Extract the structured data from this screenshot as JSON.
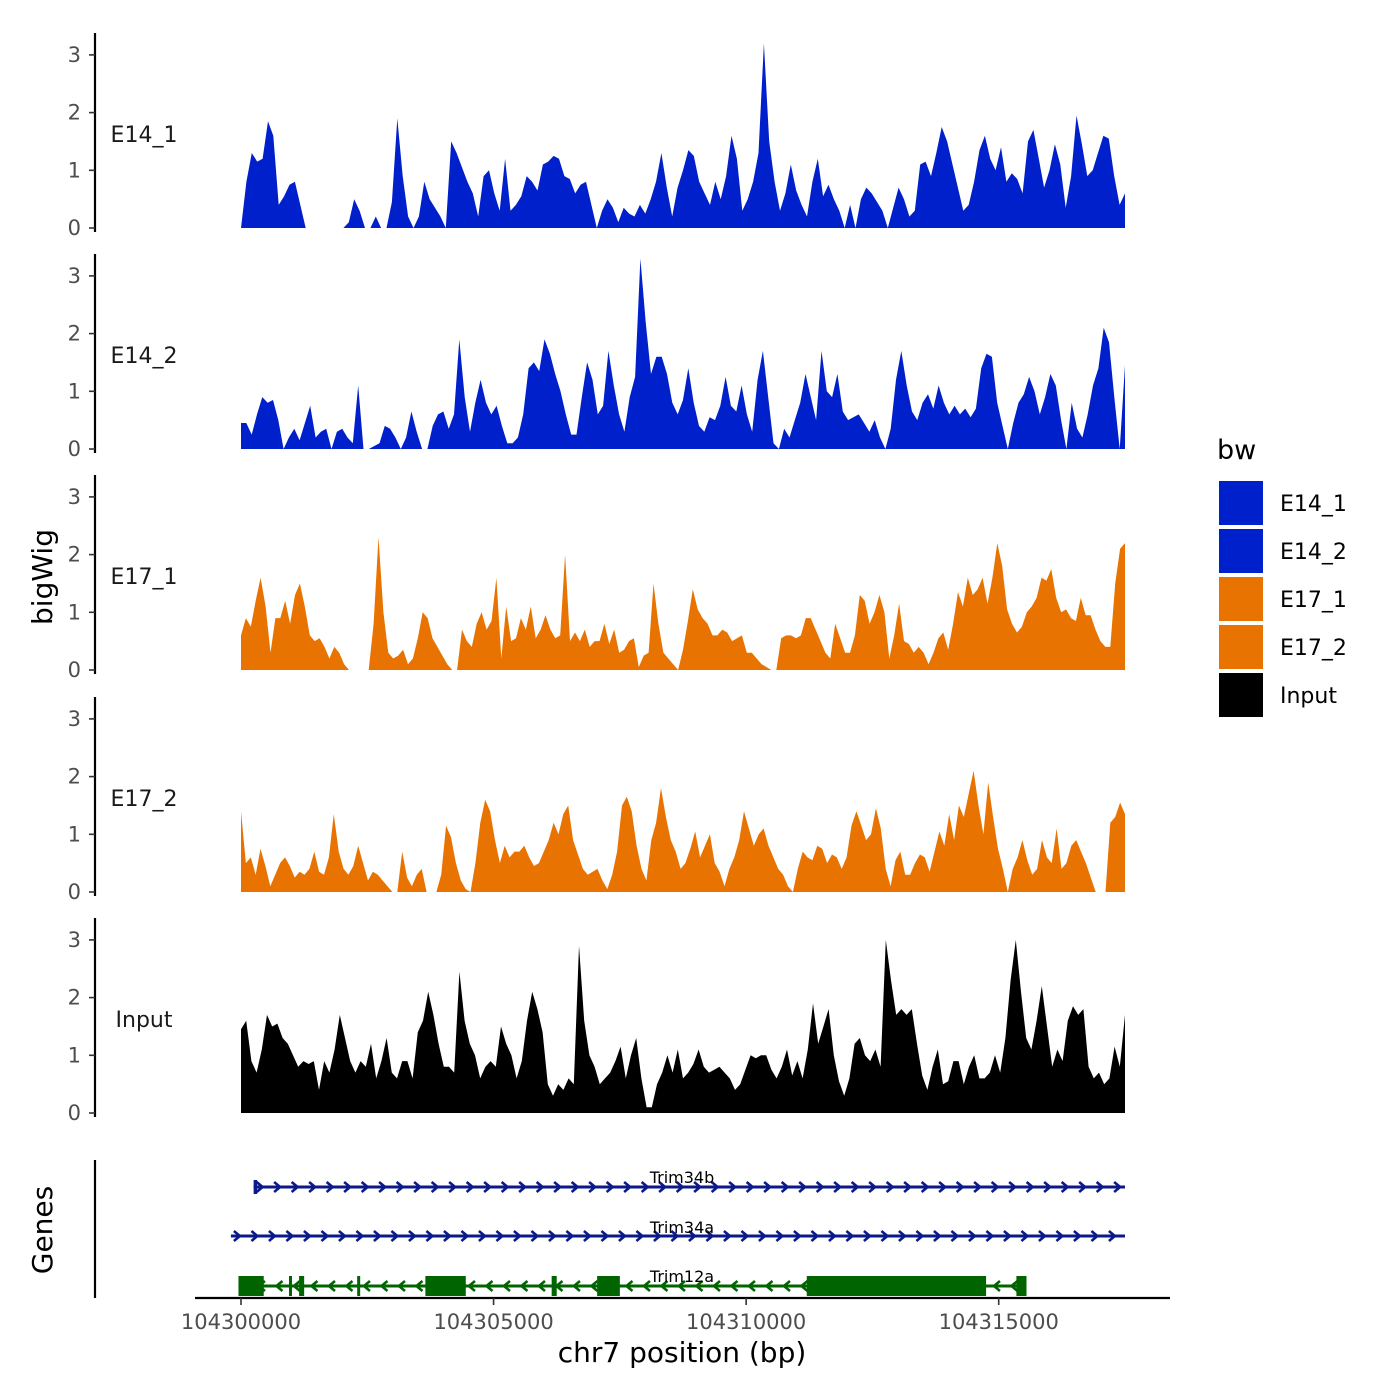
{
  "chart_data": {
    "type": "area",
    "x_axis": {
      "title": "chr7 position (bp)",
      "range": [
        104299000,
        104317500
      ],
      "ticks": [
        104300000,
        104305000,
        104310000,
        104315000
      ],
      "tick_labels": [
        "104300000",
        "104305000",
        "104310000",
        "104315000"
      ]
    },
    "y_axis": {
      "title": "bigWig",
      "range": [
        0,
        3.4
      ],
      "ticks": [
        0,
        1,
        2,
        3
      ],
      "tick_labels": [
        "0",
        "1",
        "2",
        "3"
      ]
    },
    "genes_label": "Genes",
    "legend": {
      "title": "bw",
      "position": "right",
      "entries": [
        {
          "name": "E14_1",
          "color": "#0020CC"
        },
        {
          "name": "E14_2",
          "color": "#0020CC"
        },
        {
          "name": "E17_1",
          "color": "#E87300"
        },
        {
          "name": "E17_2",
          "color": "#E87300"
        },
        {
          "name": "Input",
          "color": "#000000"
        }
      ]
    },
    "series": [
      {
        "name": "E14_1",
        "color": "#0020CC",
        "x_start": 104300000,
        "x_end": 104317500,
        "values": [
          0,
          0.8,
          1.3,
          1.15,
          1.2,
          1.85,
          1.6,
          0.4,
          0.55,
          0.75,
          0.8,
          0.4,
          0,
          0,
          0,
          0,
          0,
          0,
          0,
          0,
          0.1,
          0.5,
          0.3,
          0,
          0,
          0.2,
          0,
          0,
          0.45,
          1.9,
          0.9,
          0.2,
          0,
          0.2,
          0.8,
          0.5,
          0.35,
          0.2,
          0,
          1.5,
          1.3,
          1.05,
          0.8,
          0.6,
          0.2,
          0.9,
          1.0,
          0.6,
          0.3,
          1.2,
          0.3,
          0.4,
          0.55,
          0.9,
          0.8,
          0.65,
          1.1,
          1.15,
          1.25,
          1.2,
          0.9,
          0.85,
          0.6,
          0.75,
          0.8,
          0.4,
          0,
          0.3,
          0.5,
          0.35,
          0.1,
          0.35,
          0.25,
          0.2,
          0.4,
          0.25,
          0.5,
          0.8,
          1.3,
          0.7,
          0.2,
          0.7,
          1.0,
          1.35,
          1.25,
          0.8,
          0.6,
          0.4,
          0.8,
          0.5,
          0.9,
          1.6,
          1.2,
          0.3,
          0.5,
          0.8,
          1.3,
          3.2,
          1.5,
          0.8,
          0.3,
          0.6,
          1.1,
          0.65,
          0.4,
          0.2,
          0.8,
          1.2,
          0.55,
          0.75,
          0.5,
          0.3,
          0,
          0.4,
          0,
          0.5,
          0.7,
          0.6,
          0.45,
          0.3,
          0,
          0.35,
          0.7,
          0.5,
          0.2,
          0.3,
          1.1,
          1.15,
          0.9,
          1.3,
          1.75,
          1.5,
          1.1,
          0.7,
          0.3,
          0.4,
          0.8,
          1.35,
          1.6,
          1.2,
          1.0,
          1.4,
          0.8,
          0.95,
          0.85,
          0.6,
          1.5,
          1.7,
          1.2,
          0.7,
          1.0,
          1.45,
          1.1,
          0.35,
          0.9,
          1.95,
          1.45,
          0.9,
          1.0,
          1.3,
          1.6,
          1.55,
          0.9,
          0.4,
          0.6
        ]
      },
      {
        "name": "E14_2",
        "color": "#0020CC",
        "x_start": 104300000,
        "x_end": 104317500,
        "values": [
          0.45,
          0.45,
          0.25,
          0.6,
          0.9,
          0.8,
          0.85,
          0.5,
          0,
          0.2,
          0.35,
          0.15,
          0.45,
          0.75,
          0.2,
          0.3,
          0.35,
          0,
          0.3,
          0.35,
          0.2,
          0.1,
          1.1,
          0,
          0,
          0.05,
          0.1,
          0.4,
          0.35,
          0.2,
          0,
          0.2,
          0.65,
          0.3,
          0,
          0,
          0.4,
          0.6,
          0.65,
          0.35,
          0.6,
          1.9,
          0.9,
          0.3,
          0.8,
          1.2,
          0.8,
          0.6,
          0.75,
          0.4,
          0.1,
          0.1,
          0.2,
          0.6,
          1.4,
          1.5,
          1.35,
          1.9,
          1.65,
          1.3,
          1.0,
          0.6,
          0.25,
          0.25,
          0.9,
          1.5,
          1.2,
          0.6,
          0.75,
          1.7,
          1.1,
          0.6,
          0.3,
          0.9,
          1.25,
          3.3,
          2.2,
          1.3,
          1.6,
          1.6,
          1.3,
          0.8,
          0.6,
          0.85,
          1.4,
          0.8,
          0.4,
          0.3,
          0.55,
          0.5,
          0.75,
          1.25,
          0.75,
          0.65,
          1.1,
          0.6,
          0.3,
          1.2,
          1.7,
          0.9,
          0.1,
          0,
          0.35,
          0.2,
          0.5,
          0.8,
          1.3,
          0.9,
          0.5,
          1.7,
          1.0,
          0.9,
          1.3,
          0.65,
          0.5,
          0.55,
          0.6,
          0.45,
          0.3,
          0.5,
          0.2,
          0,
          0.35,
          1.2,
          1.7,
          1.1,
          0.65,
          0.5,
          0.8,
          0.95,
          0.7,
          1.1,
          0.8,
          0.6,
          0.75,
          0.6,
          0.7,
          0.55,
          0.7,
          1.4,
          1.65,
          1.6,
          0.8,
          0.4,
          0,
          0.45,
          0.8,
          0.95,
          1.25,
          1.0,
          0.6,
          0.9,
          1.3,
          1.1,
          0.5,
          0,
          0.8,
          0.35,
          0.2,
          0.6,
          1.1,
          1.4,
          2.1,
          1.85,
          0.9,
          0,
          1.45
        ]
      },
      {
        "name": "E17_1",
        "color": "#E87300",
        "x_start": 104300000,
        "x_end": 104317500,
        "values": [
          0.6,
          0.9,
          0.75,
          1.2,
          1.6,
          1.1,
          0.3,
          0.9,
          0.9,
          1.2,
          0.8,
          1.3,
          1.5,
          1.1,
          0.6,
          0.5,
          0.55,
          0.4,
          0.2,
          0.4,
          0.3,
          0.1,
          0,
          0,
          0,
          0,
          0,
          0.8,
          2.3,
          1.0,
          0.3,
          0.2,
          0.25,
          0.35,
          0.1,
          0.2,
          0.55,
          1.0,
          0.9,
          0.55,
          0.4,
          0.25,
          0.1,
          0,
          0,
          0.7,
          0.5,
          0.4,
          0.8,
          1.0,
          0.7,
          0.85,
          1.6,
          0.2,
          1.1,
          0.5,
          0.55,
          0.9,
          0.7,
          1.1,
          0.55,
          0.7,
          0.95,
          0.7,
          0.55,
          0.6,
          2.0,
          0.5,
          0.65,
          0.5,
          0.7,
          0.4,
          0.5,
          0.5,
          0.8,
          0.45,
          0.7,
          0.3,
          0.35,
          0.5,
          0.55,
          0.05,
          0.25,
          0.3,
          1.5,
          0.8,
          0.3,
          0.2,
          0.1,
          0,
          0.35,
          0.85,
          1.4,
          1.05,
          0.9,
          0.8,
          0.6,
          0.6,
          0.7,
          0.65,
          0.5,
          0.55,
          0.6,
          0.3,
          0.3,
          0.2,
          0.1,
          0.05,
          0,
          0,
          0.55,
          0.6,
          0.6,
          0.55,
          0.6,
          0.9,
          0.9,
          0.7,
          0.5,
          0.3,
          0.2,
          0.8,
          0.55,
          0.3,
          0.3,
          0.6,
          1.3,
          1.2,
          0.8,
          1.0,
          1.3,
          1.0,
          0.2,
          0.6,
          1.15,
          0.5,
          0.45,
          0.3,
          0.4,
          0.3,
          0.1,
          0.3,
          0.55,
          0.65,
          0.35,
          0.8,
          1.35,
          1.1,
          1.6,
          1.3,
          1.4,
          1.6,
          1.15,
          1.6,
          2.2,
          1.8,
          1.05,
          0.8,
          0.65,
          0.75,
          1.0,
          1.1,
          1.25,
          1.6,
          1.55,
          1.75,
          1.25,
          1.0,
          1.05,
          0.9,
          0.85,
          1.25,
          0.95,
          0.95,
          0.7,
          0.5,
          0.4,
          0.4,
          1.5,
          2.1,
          2.2
        ]
      },
      {
        "name": "E17_2",
        "color": "#E87300",
        "x_start": 104300000,
        "x_end": 104317500,
        "values": [
          1.4,
          0.5,
          0.6,
          0.3,
          0.75,
          0.45,
          0.1,
          0.3,
          0.5,
          0.6,
          0.45,
          0.25,
          0.35,
          0.3,
          0.4,
          0.7,
          0.35,
          0.3,
          0.6,
          1.35,
          0.7,
          0.4,
          0.3,
          0.45,
          0.8,
          0.5,
          0.2,
          0.35,
          0.3,
          0.2,
          0.1,
          0,
          0,
          0.7,
          0.25,
          0.1,
          0.3,
          0.4,
          0,
          0,
          0,
          0.3,
          1.15,
          0.95,
          0.5,
          0.2,
          0.05,
          0,
          0.5,
          1.2,
          1.6,
          1.4,
          0.9,
          0.5,
          0.8,
          0.6,
          0.7,
          0.7,
          0.8,
          0.6,
          0.45,
          0.5,
          0.7,
          0.9,
          1.2,
          1.0,
          1.35,
          1.5,
          0.9,
          0.65,
          0.4,
          0.3,
          0.35,
          0.4,
          0.2,
          0.05,
          0.3,
          0.7,
          1.5,
          1.65,
          1.4,
          0.8,
          0.4,
          0.2,
          0.9,
          1.2,
          1.8,
          1.3,
          0.9,
          0.7,
          0.4,
          0.5,
          0.75,
          1.05,
          0.6,
          0.8,
          1.0,
          0.5,
          0.35,
          0.1,
          0.4,
          0.6,
          0.9,
          1.4,
          1.1,
          0.8,
          1.0,
          1.1,
          0.8,
          0.6,
          0.4,
          0.3,
          0.1,
          0,
          0.4,
          0.7,
          0.6,
          0.55,
          0.8,
          0.75,
          0.5,
          0.65,
          0.6,
          0.4,
          0.6,
          1.15,
          1.4,
          1.15,
          0.9,
          1.0,
          1.45,
          1.1,
          0.4,
          0.1,
          0.55,
          0.7,
          0.3,
          0.3,
          0.5,
          0.65,
          0.6,
          0.35,
          0.7,
          1.05,
          0.8,
          1.35,
          0.9,
          1.5,
          1.3,
          1.7,
          2.1,
          1.5,
          1.0,
          1.9,
          1.3,
          0.75,
          0.4,
          0,
          0.4,
          0.6,
          0.9,
          0.55,
          0.3,
          0.4,
          0.9,
          0.6,
          0.5,
          1.1,
          0.4,
          0.5,
          0.8,
          0.9,
          0.7,
          0.5,
          0.25,
          0,
          0,
          0,
          1.2,
          1.3,
          1.55,
          1.35
        ]
      },
      {
        "name": "Input",
        "color": "#000000",
        "x_start": 104300000,
        "x_end": 104317500,
        "values": [
          1.45,
          1.6,
          0.9,
          0.7,
          1.1,
          1.7,
          1.5,
          1.55,
          1.3,
          1.2,
          1.0,
          0.8,
          0.9,
          0.85,
          0.9,
          0.4,
          0.9,
          0.7,
          1.1,
          1.7,
          1.3,
          0.9,
          0.7,
          0.9,
          0.8,
          1.2,
          0.6,
          0.9,
          1.3,
          0.7,
          0.6,
          0.9,
          0.9,
          0.6,
          1.4,
          1.6,
          2.1,
          1.7,
          1.2,
          0.8,
          0.8,
          0.7,
          2.45,
          1.6,
          1.2,
          1.0,
          0.6,
          0.8,
          0.9,
          0.8,
          1.5,
          1.2,
          1.0,
          0.6,
          0.9,
          1.6,
          2.1,
          1.8,
          1.4,
          0.5,
          0.3,
          0.5,
          0.4,
          0.6,
          0.5,
          2.9,
          1.6,
          1.0,
          0.8,
          0.5,
          0.6,
          0.7,
          0.9,
          1.15,
          0.6,
          1.0,
          1.3,
          0.6,
          0.1,
          0.1,
          0.5,
          0.7,
          1.0,
          0.7,
          1.1,
          0.6,
          0.7,
          0.85,
          1.1,
          0.8,
          0.7,
          0.75,
          0.8,
          0.7,
          0.6,
          0.4,
          0.5,
          0.75,
          1.0,
          0.95,
          1.0,
          1.0,
          0.75,
          0.6,
          0.8,
          1.1,
          0.65,
          0.9,
          0.6,
          1.1,
          1.9,
          1.2,
          1.5,
          1.8,
          1.0,
          0.55,
          0.3,
          0.6,
          1.2,
          1.3,
          1.0,
          0.9,
          1.1,
          0.8,
          3.0,
          2.3,
          1.7,
          1.8,
          1.7,
          1.8,
          1.2,
          0.65,
          0.4,
          0.8,
          1.1,
          0.5,
          0.55,
          0.9,
          0.9,
          0.5,
          0.8,
          1.0,
          0.6,
          0.6,
          0.7,
          1.0,
          0.7,
          1.3,
          2.3,
          3.0,
          2.1,
          1.3,
          1.1,
          1.6,
          2.2,
          1.5,
          0.8,
          1.1,
          0.9,
          1.6,
          1.85,
          1.7,
          1.8,
          0.8,
          0.6,
          0.7,
          0.5,
          0.6,
          1.15,
          0.8,
          1.7
        ]
      }
    ],
    "genes": [
      {
        "name": "Trim34b",
        "strand": "+",
        "color": "#0B1A8A",
        "start": 104300250,
        "end": 104317500,
        "exons": [
          [
            104300250,
            104300320
          ]
        ]
      },
      {
        "name": "Trim34a",
        "strand": "+",
        "color": "#0B1A8A",
        "start": 104299800,
        "end": 104317500,
        "exons": []
      },
      {
        "name": "Trim12a",
        "strand": "-",
        "color": "#006400",
        "start": 104299950,
        "end": 104315550,
        "exons": [
          [
            104299950,
            104300450
          ],
          [
            104300950,
            104301000
          ],
          [
            104301150,
            104301250
          ],
          [
            104302300,
            104302320
          ],
          [
            104303650,
            104304450
          ],
          [
            104306150,
            104306250
          ],
          [
            104307050,
            104307500
          ],
          [
            104311200,
            104314750
          ],
          [
            104315350,
            104315550
          ]
        ]
      }
    ]
  }
}
